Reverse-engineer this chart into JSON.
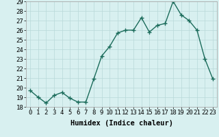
{
  "x": [
    0,
    1,
    2,
    3,
    4,
    5,
    6,
    7,
    8,
    9,
    10,
    11,
    12,
    13,
    14,
    15,
    16,
    17,
    18,
    19,
    20,
    21,
    22,
    23
  ],
  "y": [
    19.7,
    19.0,
    18.4,
    19.2,
    19.5,
    18.9,
    18.5,
    18.5,
    20.9,
    23.3,
    24.3,
    25.7,
    26.0,
    26.0,
    27.3,
    25.8,
    26.5,
    26.7,
    29.0,
    27.6,
    27.0,
    26.0,
    23.0,
    20.9
  ],
  "line_color": "#1a6b5a",
  "marker": "+",
  "marker_size": 4,
  "line_width": 1.0,
  "bg_color": "#d8f0f0",
  "grid_color": "#b8d8d8",
  "xlabel": "Humidex (Indice chaleur)",
  "ylim": [
    18,
    29
  ],
  "xlim": [
    -0.5,
    23.5
  ],
  "yticks": [
    18,
    19,
    20,
    21,
    22,
    23,
    24,
    25,
    26,
    27,
    28,
    29
  ],
  "xticks": [
    0,
    1,
    2,
    3,
    4,
    5,
    6,
    7,
    8,
    9,
    10,
    11,
    12,
    13,
    14,
    15,
    16,
    17,
    18,
    19,
    20,
    21,
    22,
    23
  ],
  "xlabel_fontsize": 7.5,
  "tick_fontsize": 6.5
}
